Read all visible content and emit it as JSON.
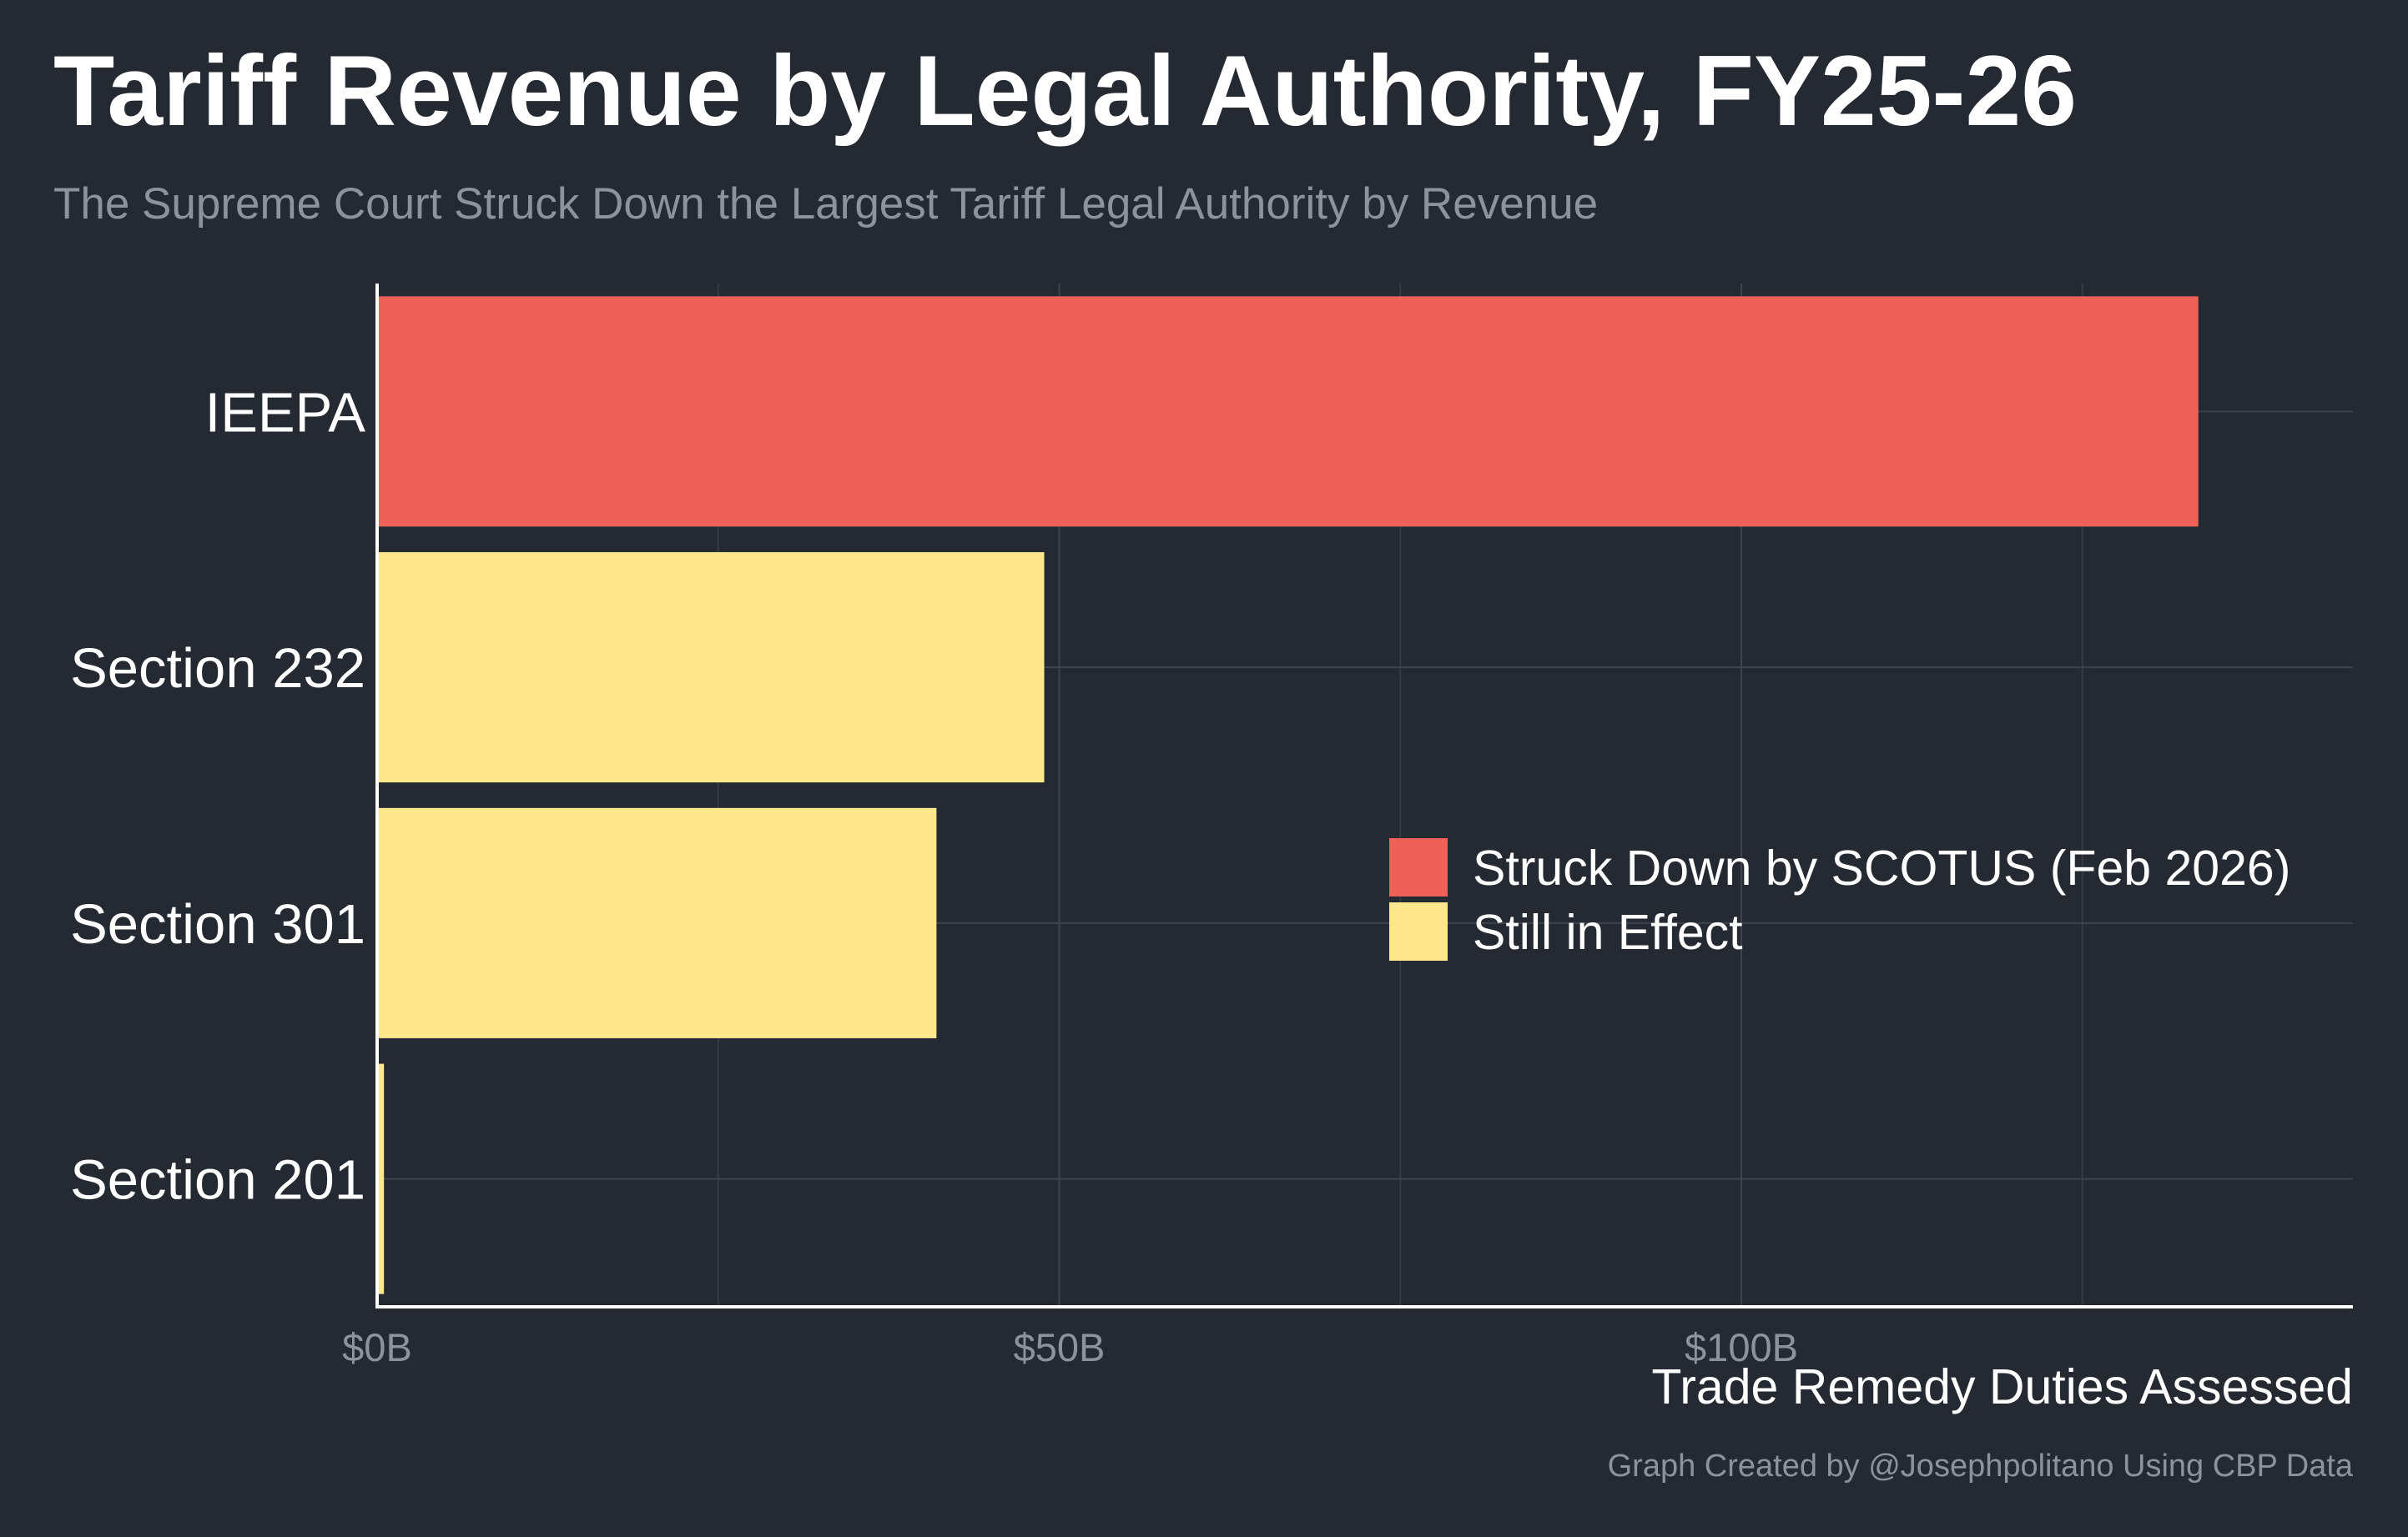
{
  "chart_data": {
    "type": "bar",
    "orientation": "horizontal",
    "title": "Tariff Revenue by Legal Authority, FY25-26",
    "subtitle": "The Supreme Court Struck Down the Largest Tariff Legal Authority by Revenue",
    "xlabel": "Trade Remedy Duties Assessed",
    "ylabel": "",
    "caption": "Graph Created by @Josephpolitano Using CBP Data",
    "categories": [
      "IEEPA",
      "Section 232",
      "Section 301",
      "Section 201"
    ],
    "values": [
      133.5,
      48.9,
      41.0,
      0.5
    ],
    "status": [
      "Struck Down by SCOTUS (Feb 2026)",
      "Still in Effect",
      "Still in Effect",
      "Still in Effect"
    ],
    "xlim": [
      0,
      145
    ],
    "xticks": [
      0,
      50,
      100
    ],
    "xtick_labels": [
      "$0B",
      "$50B",
      "$100B"
    ],
    "unit": "$ billions",
    "grid": true,
    "legend": {
      "position": "center-right",
      "entries": [
        {
          "label": "Struck Down by SCOTUS (Feb 2026)",
          "color": "#ee6158"
        },
        {
          "label": "Still in Effect",
          "color": "#fee78c"
        }
      ]
    },
    "colors": {
      "Struck Down by SCOTUS (Feb 2026)": "#ee6158",
      "Still in Effect": "#fee78c"
    }
  }
}
